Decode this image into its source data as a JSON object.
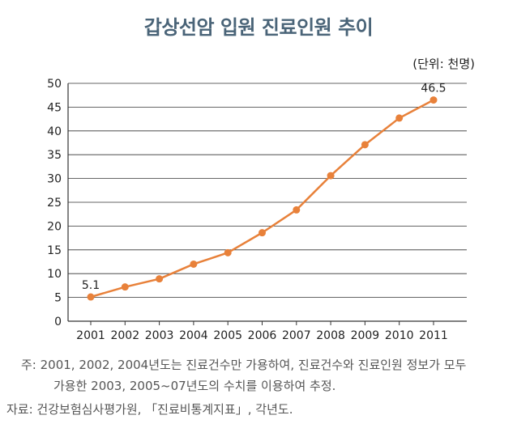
{
  "chart_data": {
    "type": "line",
    "title": "갑상선암 입원 진료인원 추이",
    "unit_label": "(단위: 천명)",
    "xlabel": "",
    "ylabel": "",
    "x_categories": [
      "2001",
      "2002",
      "2003",
      "2004",
      "2005",
      "2006",
      "2007",
      "2008",
      "2009",
      "2010",
      "2011"
    ],
    "yticks": [
      "0",
      "5",
      "10",
      "15",
      "20",
      "25",
      "30",
      "35",
      "40",
      "45",
      "50"
    ],
    "ylim": [
      0,
      50
    ],
    "series": [
      {
        "name": "갑상선암 입원 진료인원",
        "x_positions": [
          0,
          1,
          2,
          3,
          4,
          5,
          6,
          7,
          8,
          9,
          10
        ],
        "values": [
          5.1,
          7.2,
          8.9,
          12.0,
          14.4,
          18.6,
          23.4,
          30.6,
          37.1,
          42.7,
          46.5
        ],
        "color": "#e8813a"
      }
    ],
    "data_labels": [
      {
        "index": 0,
        "text": "5.1"
      },
      {
        "index": 10,
        "text": "46.5"
      }
    ],
    "grid": true
  },
  "notes": {
    "line1": "주: 2001, 2002, 2004년도는 진료건수만 가용하여, 진료건수와 진료인원 정보가 모두",
    "line2": "가용한 2003, 2005~07년도의 수치를 이용하여 추정.",
    "source": "자료: 건강보험심사평가원, 「진료비통계지표」, 각년도."
  }
}
